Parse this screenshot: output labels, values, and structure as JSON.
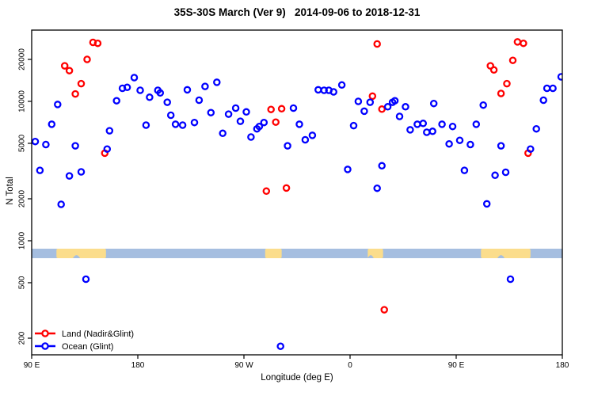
{
  "figure": {
    "title": "35S-30S March (Ver 9)   2014-09-06 to 2018-12-31"
  },
  "chart_data": {
    "type": "scatter",
    "title": "35S-30S March (Ver 9)   2014-09-06 to 2018-12-31",
    "xlabel": "Longitude (deg E)",
    "ylabel": "N Total",
    "x_axis": {
      "note": "longitude wraps eastward: 90E -> 180 -> 90W -> 0 -> 90E -> 180, stored as continuous 90..540 deg",
      "range": [
        90,
        540
      ],
      "tick_values": [
        90,
        180,
        270,
        360,
        450,
        540
      ],
      "tick_labels": [
        "90 E",
        "180",
        "90 W",
        "0",
        "90 E",
        "180"
      ]
    },
    "y_axis": {
      "scale": "log",
      "range": [
        144,
        32000
      ],
      "tick_values": [
        200,
        500,
        1000,
        2000,
        5000,
        10000,
        20000
      ],
      "tick_labels": [
        "200",
        "500",
        "1000",
        "2000",
        "5000",
        "10000",
        "20000"
      ]
    },
    "legend": {
      "position": "bottom-left",
      "items": [
        {
          "label": "Land (Nadir&Glint)",
          "color": "#ff0000"
        },
        {
          "label": "Ocean (Glint)",
          "color": "#0000ff"
        }
      ]
    },
    "map_band": {
      "description": "world-map strip of the 35S-30S latitude belt drawn across the plot",
      "y_value_range": [
        750,
        877
      ],
      "ocean_color": "#a5bee0",
      "land_color": "#fbdd8c",
      "land_segments": [
        {
          "name": "australia",
          "lon": [
            111,
            153
          ],
          "notches": [
            [
              125,
              131
            ]
          ]
        },
        {
          "name": "south-america",
          "lon": [
            288,
            302
          ],
          "notches": []
        },
        {
          "name": "south-africa",
          "lon": [
            375,
            388
          ],
          "notches": [
            [
              375,
              380
            ]
          ]
        },
        {
          "name": "australia-wrapped",
          "lon": [
            471,
            513
          ],
          "notches": [
            [
              485,
              491
            ]
          ]
        }
      ]
    },
    "series": [
      {
        "name": "Land (Nadir&Glint)",
        "color": "#ff0000",
        "points": [
          [
            142,
            26500
          ],
          [
            146,
            26100
          ],
          [
            137,
            20000
          ],
          [
            118,
            18000
          ],
          [
            122,
            16600
          ],
          [
            132,
            13400
          ],
          [
            127,
            11300
          ],
          [
            152,
            4250
          ],
          [
            293,
            8750
          ],
          [
            302,
            8850
          ],
          [
            297,
            7100
          ],
          [
            289,
            2270
          ],
          [
            306,
            2390
          ],
          [
            383,
            25800
          ],
          [
            379,
            10900
          ],
          [
            387,
            8800
          ],
          [
            389,
            320
          ],
          [
            502,
            26700
          ],
          [
            507,
            26100
          ],
          [
            498,
            19700
          ],
          [
            479,
            18000
          ],
          [
            482,
            16800
          ],
          [
            493,
            13400
          ],
          [
            488,
            11400
          ],
          [
            511,
            4250
          ]
        ]
      },
      {
        "name": "Ocean (Glint)",
        "color": "#0000ff",
        "points": [
          [
            177,
            14800
          ],
          [
            167,
            12400
          ],
          [
            171,
            12600
          ],
          [
            182,
            12000
          ],
          [
            190,
            10700
          ],
          [
            197,
            12000
          ],
          [
            199,
            11500
          ],
          [
            162,
            10100
          ],
          [
            205,
            9850
          ],
          [
            112,
            9500
          ],
          [
            107,
            6850
          ],
          [
            156,
            6150
          ],
          [
            187,
            6750
          ],
          [
            93,
            5150
          ],
          [
            102,
            4900
          ],
          [
            127,
            4800
          ],
          [
            154,
            4550
          ],
          [
            97,
            3200
          ],
          [
            122,
            2920
          ],
          [
            132,
            3120
          ],
          [
            115,
            1825
          ],
          [
            222,
            12100
          ],
          [
            237,
            12800
          ],
          [
            247,
            13700
          ],
          [
            232,
            10200
          ],
          [
            208,
            7950
          ],
          [
            242,
            8300
          ],
          [
            212,
            6850
          ],
          [
            218,
            6750
          ],
          [
            228,
            7050
          ],
          [
            257,
            8100
          ],
          [
            263,
            8950
          ],
          [
            272,
            8400
          ],
          [
            267,
            7200
          ],
          [
            252,
            5900
          ],
          [
            276,
            5550
          ],
          [
            281,
            6350
          ],
          [
            283,
            6600
          ],
          [
            287,
            7050
          ],
          [
            307,
            4800
          ],
          [
            317,
            6850
          ],
          [
            312,
            8950
          ],
          [
            333,
            12100
          ],
          [
            338,
            12000
          ],
          [
            342,
            12000
          ],
          [
            346,
            11700
          ],
          [
            353,
            13100
          ],
          [
            367,
            10000
          ],
          [
            377,
            9850
          ],
          [
            372,
            8500
          ],
          [
            392,
            9150
          ],
          [
            396,
            9850
          ],
          [
            398,
            10100
          ],
          [
            407,
            9150
          ],
          [
            402,
            7800
          ],
          [
            363,
            6700
          ],
          [
            328,
            5700
          ],
          [
            322,
            5300
          ],
          [
            411,
            6250
          ],
          [
            417,
            6850
          ],
          [
            422,
            6950
          ],
          [
            425,
            6000
          ],
          [
            430,
            6100
          ],
          [
            431,
            9650
          ],
          [
            358,
            3250
          ],
          [
            387,
            3450
          ],
          [
            383,
            2380
          ],
          [
            539,
            15000
          ],
          [
            527,
            12400
          ],
          [
            532,
            12400
          ],
          [
            524,
            10200
          ],
          [
            473,
            9400
          ],
          [
            438,
            6850
          ],
          [
            447,
            6600
          ],
          [
            467,
            6850
          ],
          [
            518,
            6350
          ],
          [
            444,
            4950
          ],
          [
            453,
            5250
          ],
          [
            462,
            4900
          ],
          [
            488,
            4800
          ],
          [
            513,
            4550
          ],
          [
            457,
            3200
          ],
          [
            483,
            2950
          ],
          [
            492,
            3100
          ],
          [
            476,
            1840
          ],
          [
            136,
            530
          ],
          [
            496,
            530
          ],
          [
            301,
            175
          ]
        ]
      }
    ]
  }
}
